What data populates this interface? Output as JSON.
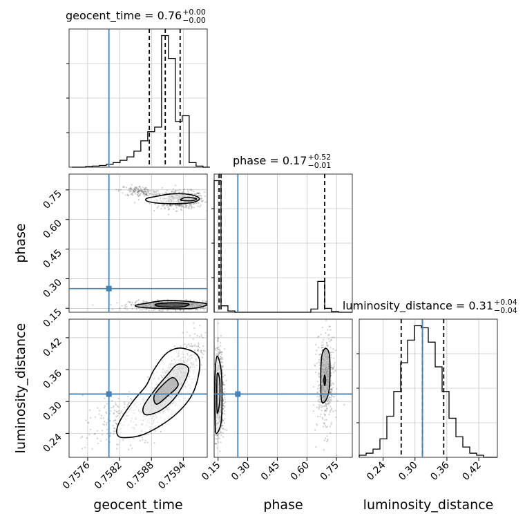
{
  "chart_data": {
    "type": "corner",
    "parameters": [
      "geocent_time",
      "phase",
      "luminosity_distance"
    ],
    "truth_color": "#4682b4",
    "contour_color": "#000000",
    "grid": true,
    "axes": {
      "geocent_time": {
        "range": [
          0.75725,
          0.75985
        ],
        "ticks": [
          0.7576,
          0.7582,
          0.7588,
          0.7594
        ],
        "tick_labels": [
          "0.7576",
          "0.7582",
          "0.7588",
          "0.7594"
        ]
      },
      "phase": {
        "range": [
          0.13,
          0.83
        ],
        "ticks": [
          0.15,
          0.3,
          0.45,
          0.6,
          0.75
        ],
        "tick_labels": [
          "0.15",
          "0.30",
          "0.45",
          "0.60",
          "0.75"
        ]
      },
      "luminosity_distance": {
        "range": [
          0.195,
          0.455
        ],
        "ticks": [
          0.24,
          0.3,
          0.36,
          0.42
        ],
        "tick_labels": [
          "0.24",
          "0.30",
          "0.36",
          "0.42"
        ]
      }
    },
    "truths": {
      "geocent_time": 0.758,
      "phase": 0.25,
      "luminosity_distance": 0.314
    },
    "titles": [
      {
        "param": "geocent_time",
        "text": "geocent_time = 0.76",
        "plus": "+0.00",
        "minus": "−0.00"
      },
      {
        "param": "phase",
        "text": "phase = 0.17",
        "plus": "+0.52",
        "minus": "−0.01"
      },
      {
        "param": "luminosity_distance",
        "text": "luminosity_distance = 0.31",
        "plus": "+0.04",
        "minus": "−0.04"
      }
    ],
    "histograms": [
      {
        "param": "geocent_time",
        "bin_edges": [
          0.7573,
          0.75743,
          0.75756,
          0.75769,
          0.75782,
          0.75795,
          0.75808,
          0.75821,
          0.75834,
          0.75847,
          0.7586,
          0.75873,
          0.75886,
          0.75899,
          0.75912,
          0.75925,
          0.75938,
          0.75951,
          0.75964,
          0.75977,
          0.7599
        ],
        "counts": [
          0,
          0,
          1,
          2,
          3,
          5,
          8,
          12,
          18,
          28,
          46,
          62,
          70,
          230,
          190,
          80,
          90,
          8,
          2,
          0
        ],
        "quantiles": [
          0.75876,
          0.75906,
          0.75934
        ]
      },
      {
        "param": "phase",
        "bin_edges": [
          0.13,
          0.165,
          0.2,
          0.235,
          0.27,
          0.305,
          0.34,
          0.375,
          0.41,
          0.445,
          0.48,
          0.515,
          0.55,
          0.585,
          0.62,
          0.655,
          0.69,
          0.725,
          0.76,
          0.795,
          0.83
        ],
        "counts": [
          205,
          10,
          2,
          0,
          0,
          0,
          0,
          0,
          0,
          0,
          0,
          0,
          0,
          0,
          5,
          48,
          6,
          1,
          0,
          0
        ],
        "quantiles": [
          0.155,
          0.165,
          0.69
        ]
      },
      {
        "param": "luminosity_distance",
        "bin_edges": [
          0.195,
          0.208,
          0.221,
          0.234,
          0.247,
          0.26,
          0.273,
          0.286,
          0.299,
          0.312,
          0.325,
          0.338,
          0.351,
          0.364,
          0.377,
          0.39,
          0.403,
          0.416,
          0.429,
          0.442,
          0.455
        ],
        "counts": [
          1,
          2,
          4,
          9,
          20,
          32,
          46,
          57,
          64,
          63,
          56,
          44,
          32,
          19,
          10,
          5,
          2,
          1,
          0,
          0
        ],
        "quantiles": [
          0.274,
          0.314,
          0.354
        ]
      }
    ],
    "pairs": [
      {
        "x": "geocent_time",
        "y": "phase",
        "clusters": [
          {
            "cx": 0.75935,
            "cy": 0.7,
            "sx": 0.00022,
            "sy": 0.022,
            "rho": 0.0,
            "n": 520
          },
          {
            "cx": 0.7586,
            "cy": 0.74,
            "sx": 0.0002,
            "sy": 0.015,
            "rho": -0.3,
            "n": 160
          },
          {
            "cx": 0.7592,
            "cy": 0.165,
            "sx": 0.0004,
            "sy": 0.012,
            "rho": 0.0,
            "n": 480
          }
        ],
        "contours": [
          [
            [
              0.75885,
              0.715
            ],
            [
              0.7592,
              0.73
            ],
            [
              0.75955,
              0.725
            ],
            [
              0.7597,
              0.705
            ],
            [
              0.75955,
              0.685
            ],
            [
              0.7591,
              0.68
            ],
            [
              0.75875,
              0.69
            ],
            [
              0.7587,
              0.705
            ]
          ],
          [
            [
              0.75945,
              0.712
            ],
            [
              0.75965,
              0.705
            ],
            [
              0.75955,
              0.695
            ],
            [
              0.75935,
              0.698
            ]
          ],
          [
            [
              0.7587,
              0.175
            ],
            [
              0.7591,
              0.19
            ],
            [
              0.7596,
              0.182
            ],
            [
              0.75985,
              0.17
            ],
            [
              0.7596,
              0.15
            ],
            [
              0.7591,
              0.148
            ],
            [
              0.7586,
              0.155
            ],
            [
              0.7585,
              0.165
            ]
          ],
          [
            [
              0.7589,
              0.172
            ],
            [
              0.7592,
              0.178
            ],
            [
              0.7595,
              0.172
            ],
            [
              0.7594,
              0.158
            ],
            [
              0.7591,
              0.156
            ],
            [
              0.7589,
              0.162
            ]
          ]
        ]
      },
      {
        "x": "geocent_time",
        "y": "luminosity_distance",
        "clusters": [
          {
            "cx": 0.75915,
            "cy": 0.33,
            "sx": 0.00028,
            "sy": 0.04,
            "rho": 0.78,
            "n": 900
          },
          {
            "cx": 0.7581,
            "cy": 0.265,
            "sx": 0.0003,
            "sy": 0.028,
            "rho": 0.6,
            "n": 160
          }
        ],
        "contours": [
          [
            [
              0.75828,
              0.232
            ],
            [
              0.7587,
              0.24
            ],
            [
              0.75925,
              0.275
            ],
            [
              0.7596,
              0.32
            ],
            [
              0.7597,
              0.38
            ],
            [
              0.7594,
              0.4
            ],
            [
              0.7591,
              0.392
            ],
            [
              0.75885,
              0.36
            ],
            [
              0.7587,
              0.33
            ],
            [
              0.75845,
              0.3
            ],
            [
              0.7582,
              0.262
            ],
            [
              0.75815,
              0.24
            ]
          ],
          [
            [
              0.7587,
              0.275
            ],
            [
              0.759,
              0.285
            ],
            [
              0.7593,
              0.315
            ],
            [
              0.7595,
              0.36
            ],
            [
              0.7593,
              0.37
            ],
            [
              0.7591,
              0.35
            ],
            [
              0.75885,
              0.32
            ],
            [
              0.75865,
              0.29
            ]
          ],
          [
            [
              0.7589,
              0.295
            ],
            [
              0.7591,
              0.31
            ],
            [
              0.7593,
              0.33
            ],
            [
              0.7592,
              0.345
            ],
            [
              0.759,
              0.33
            ],
            [
              0.75885,
              0.31
            ]
          ]
        ]
      },
      {
        "x": "phase",
        "y": "luminosity_distance",
        "clusters": [
          {
            "cx": 0.155,
            "cy": 0.315,
            "sx": 0.012,
            "sy": 0.04,
            "rho": 0.0,
            "n": 850
          },
          {
            "cx": 0.695,
            "cy": 0.335,
            "sx": 0.022,
            "sy": 0.045,
            "rho": 0.0,
            "n": 450
          }
        ],
        "contours": [
          [
            [
              0.14,
              0.24
            ],
            [
              0.165,
              0.26
            ],
            [
              0.17,
              0.31
            ],
            [
              0.165,
              0.36
            ],
            [
              0.145,
              0.385
            ],
            [
              0.135,
              0.35
            ],
            [
              0.135,
              0.27
            ]
          ],
          [
            [
              0.145,
              0.28
            ],
            [
              0.158,
              0.3
            ],
            [
              0.158,
              0.34
            ],
            [
              0.145,
              0.35
            ]
          ],
          [
            [
              0.675,
              0.3
            ],
            [
              0.7,
              0.305
            ],
            [
              0.715,
              0.33
            ],
            [
              0.715,
              0.385
            ],
            [
              0.695,
              0.4
            ],
            [
              0.675,
              0.385
            ],
            [
              0.67,
              0.34
            ]
          ],
          [
            [
              0.69,
              0.33
            ],
            [
              0.695,
              0.34
            ],
            [
              0.69,
              0.35
            ],
            [
              0.686,
              0.34
            ]
          ]
        ]
      }
    ]
  }
}
